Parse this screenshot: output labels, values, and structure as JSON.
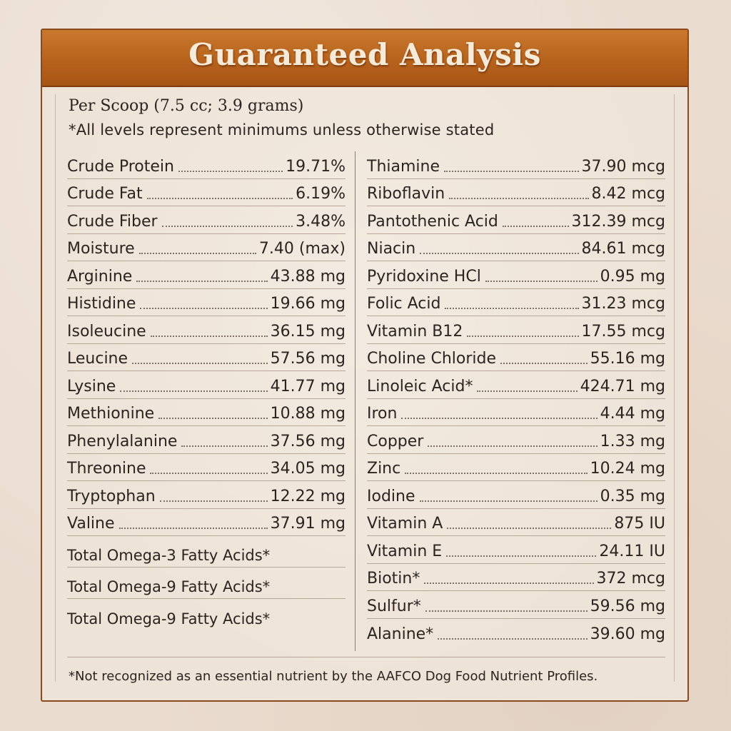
{
  "title": "Guaranteed Analysis",
  "serving": "Per Scoop (7.5 cc; 3.9 grams)",
  "note": "*All levels represent minimums unless otherwise stated",
  "left_rows": [
    {
      "label": "Crude Protein",
      "value": "19.71%"
    },
    {
      "label": "Crude Fat",
      "value": "6.19%"
    },
    {
      "label": "Crude Fiber",
      "value": "3.48%"
    },
    {
      "label": "Moisture",
      "value": "7.40 (max)"
    },
    {
      "label": "Arginine",
      "value": "43.88 mg"
    },
    {
      "label": "Histidine",
      "value": "19.66 mg"
    },
    {
      "label": "Isoleucine",
      "value": "36.15 mg"
    },
    {
      "label": "Leucine",
      "value": "57.56 mg"
    },
    {
      "label": "Lysine",
      "value": "41.77 mg"
    },
    {
      "label": "Methionine",
      "value": "10.88 mg"
    },
    {
      "label": "Phenylalanine",
      "value": "37.56 mg"
    },
    {
      "label": "Threonine",
      "value": "34.05 mg"
    },
    {
      "label": "Tryptophan",
      "value": "12.22 mg"
    },
    {
      "label": "Valine",
      "value": "37.91 mg"
    },
    {
      "label": "Total Omega-3 Fatty Acids*",
      "value": ""
    },
    {
      "label": "Total Omega-9 Fatty Acids*",
      "value": ""
    },
    {
      "label": "Total Omega-9 Fatty Acids*",
      "value": ""
    }
  ],
  "right_rows": [
    {
      "label": "Thiamine",
      "value": "37.90 mcg"
    },
    {
      "label": "Riboflavin",
      "value": "8.42 mcg"
    },
    {
      "label": "Pantothenic Acid",
      "value": "312.39 mcg"
    },
    {
      "label": "Niacin",
      "value": "84.61 mcg"
    },
    {
      "label": "Pyridoxine HCl",
      "value": "0.95 mg"
    },
    {
      "label": "Folic Acid",
      "value": "31.23 mcg"
    },
    {
      "label": "Vitamin B12",
      "value": "17.55 mcg"
    },
    {
      "label": "Choline Chloride",
      "value": "55.16 mg"
    },
    {
      "label": "Linoleic Acid*",
      "value": "424.71 mg"
    },
    {
      "label": "Iron",
      "value": "4.44 mg"
    },
    {
      "label": "Copper",
      "value": "1.33 mg"
    },
    {
      "label": "Zinc",
      "value": "10.24 mg"
    },
    {
      "label": "Iodine",
      "value": "0.35 mg"
    },
    {
      "label": "Vitamin A",
      "value": "875 IU"
    },
    {
      "label": "Vitamin E",
      "value": "24.11 IU"
    },
    {
      "label": "Biotin*",
      "value": "372 mcg"
    },
    {
      "label": "Sulfur*",
      "value": "59.56 mg"
    },
    {
      "label": "Alanine*",
      "value": "39.60 mg"
    }
  ],
  "footnote": "*Not recognized as an essential nutrient by the AAFCO Dog Food Nutrient Profiles.",
  "colors": {
    "banner": "#b7631d",
    "banner_text": "#f6ead8",
    "panel_border": "#8a4a1e",
    "background": "#eadccf",
    "text": "#2b2420"
  }
}
